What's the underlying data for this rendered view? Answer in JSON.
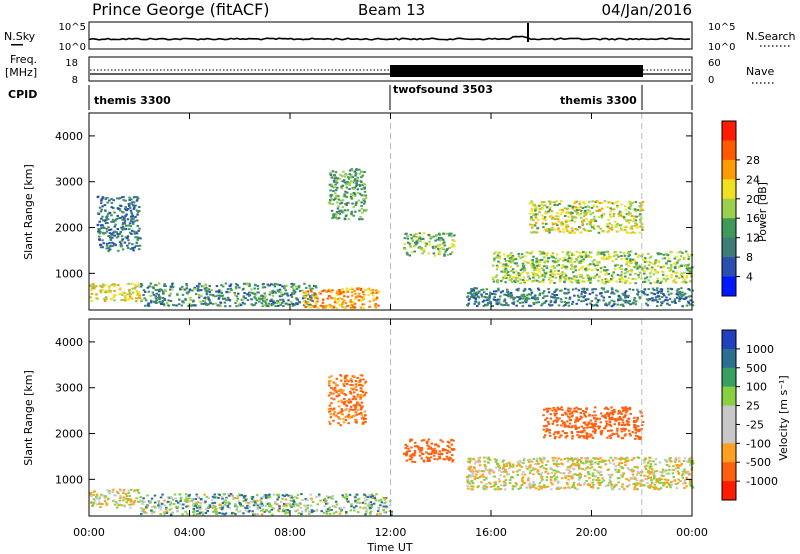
{
  "header": {
    "station": "Prince George (fitACF)",
    "beam": "Beam 13",
    "date": "04/Jan/2016"
  },
  "top_panels": {
    "noise": {
      "left_label": "N.Sky",
      "left_ticks": [
        "10^5",
        "10^0"
      ],
      "right_label": "N.Search",
      "right_ticks": [
        "10^5",
        "10^0"
      ]
    },
    "freq": {
      "left_label_1": "Freq.",
      "left_label_2": "[MHz]",
      "left_ticks": [
        "18",
        "8"
      ],
      "right_label": "Nave",
      "right_ticks": [
        "60",
        "0"
      ]
    },
    "cpid": {
      "label": "CPID",
      "segments": [
        {
          "label": "themis 3300",
          "start": 0,
          "end": 12
        },
        {
          "label": "twofsound 3503",
          "start": 12,
          "end": 22
        },
        {
          "label": "themis 3300",
          "start": 22,
          "end": 24
        }
      ]
    }
  },
  "chart_data": [
    {
      "type": "heatmap",
      "panel": "power",
      "ylabel": "Slant Range [km]",
      "x_range": [
        0,
        24
      ],
      "ylim": [
        200,
        4500
      ],
      "yticks": [
        1000,
        2000,
        3000,
        4000
      ],
      "colorbar": {
        "label": "Power [dB]",
        "ticks": [
          "4",
          "8",
          "12",
          "16",
          "20",
          "24",
          "28"
        ],
        "colors": [
          "#0018ff",
          "#2a4fb0",
          "#3f7e78",
          "#3f9a5a",
          "#9bd04e",
          "#f0e020",
          "#ff9a00",
          "#ff5a00",
          "#ff1a00"
        ]
      },
      "regions": [
        {
          "x": [
            0.0,
            2.0
          ],
          "y": [
            400,
            800
          ],
          "power": 22
        },
        {
          "x": [
            0.3,
            2.0
          ],
          "y": [
            1500,
            2700
          ],
          "power": 10
        },
        {
          "x": [
            2.0,
            9.0
          ],
          "y": [
            300,
            800
          ],
          "power": 12
        },
        {
          "x": [
            8.5,
            11.5
          ],
          "y": [
            250,
            700
          ],
          "power": 26
        },
        {
          "x": [
            9.5,
            11.0
          ],
          "y": [
            2200,
            3300
          ],
          "power": 14
        },
        {
          "x": [
            12.5,
            14.5
          ],
          "y": [
            1400,
            1900
          ],
          "power": 16
        },
        {
          "x": [
            15.0,
            24.0
          ],
          "y": [
            300,
            700
          ],
          "power": 10
        },
        {
          "x": [
            16.0,
            24.0
          ],
          "y": [
            800,
            1500
          ],
          "power": 18
        },
        {
          "x": [
            17.5,
            22.0
          ],
          "y": [
            1900,
            2600
          ],
          "power": 20
        }
      ]
    },
    {
      "type": "heatmap",
      "panel": "velocity",
      "ylabel": "Slant Range [km]",
      "xlabel": "Time UT",
      "x_range": [
        0,
        24
      ],
      "xticks": [
        "00:00",
        "04:00",
        "08:00",
        "12:00",
        "16:00",
        "20:00",
        "00:00"
      ],
      "ylim": [
        200,
        4500
      ],
      "yticks": [
        1000,
        2000,
        3000,
        4000
      ],
      "colorbar": {
        "label": "Velocity [m s⁻¹]",
        "ticks": [
          "1000",
          "500",
          "100",
          "25",
          "-25",
          "-100",
          "-500",
          "-1000"
        ],
        "colors": [
          "#2040c0",
          "#2a7090",
          "#38a060",
          "#88d040",
          "#c8c8c8",
          "#c8c8c8",
          "#ffa020",
          "#ff6010",
          "#ff1a00"
        ]
      },
      "regions": [
        {
          "x": [
            0.0,
            2.0
          ],
          "y": [
            400,
            800
          ],
          "velocity": 0
        },
        {
          "x": [
            2.0,
            12.0
          ],
          "y": [
            250,
            700
          ],
          "velocity": 60
        },
        {
          "x": [
            9.5,
            11.0
          ],
          "y": [
            2200,
            3300
          ],
          "velocity": -120
        },
        {
          "x": [
            12.5,
            14.5
          ],
          "y": [
            1400,
            1900
          ],
          "velocity": -200
        },
        {
          "x": [
            15.0,
            24.0
          ],
          "y": [
            800,
            1500
          ],
          "velocity": 0
        },
        {
          "x": [
            18.0,
            22.0
          ],
          "y": [
            1900,
            2600
          ],
          "velocity": -300
        }
      ]
    }
  ]
}
